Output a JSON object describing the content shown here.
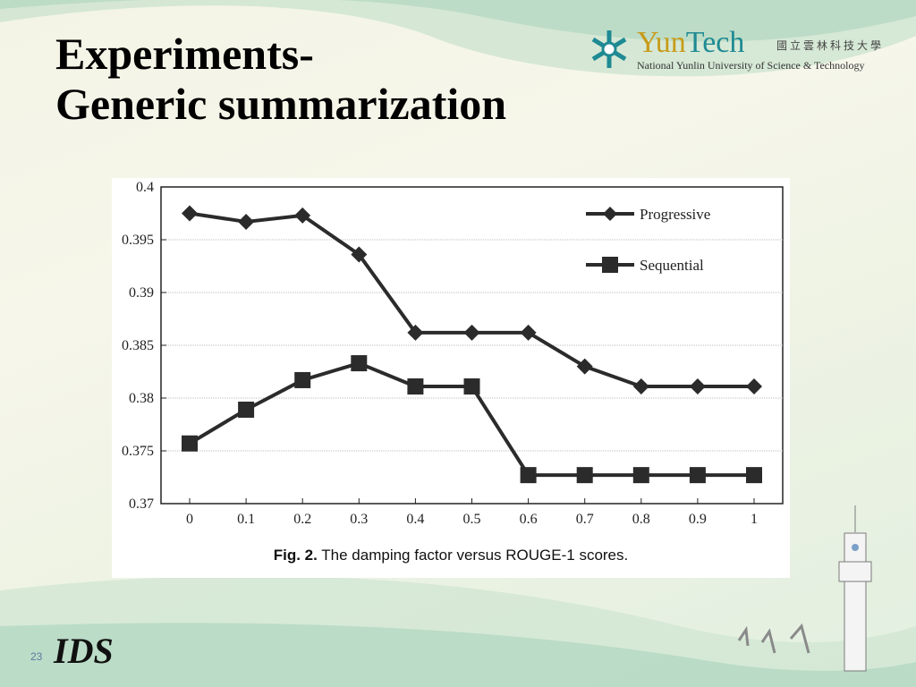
{
  "slide": {
    "title_line1": "Experiments-",
    "title_line2": "Generic summarization",
    "page_number": "23"
  },
  "logo": {
    "brand_yun": "Yun",
    "brand_tech": "Tech",
    "chinese_name": "國立雲林科技大學",
    "english_name": "National Yunlin University of Science & Technology",
    "footer_logo_text": "IDS"
  },
  "figure": {
    "caption_prefix": "Fig. 2.",
    "caption_text": "The damping factor versus ROUGE-1 scores."
  },
  "colors": {
    "series": "#2b2b2b",
    "grid": "#bdbdbd",
    "accent_gold": "#c79b18",
    "accent_teal": "#1f8a93"
  },
  "chart_data": {
    "type": "line",
    "x": [
      0,
      0.1,
      0.2,
      0.3,
      0.4,
      0.5,
      0.6,
      0.7,
      0.8,
      0.9,
      1
    ],
    "x_tick_labels": [
      "0",
      "0.1",
      "0.2",
      "0.3",
      "0.4",
      "0.5",
      "0.6",
      "0.7",
      "0.8",
      "0.9",
      "1"
    ],
    "y_tick_values": [
      0.4,
      0.395,
      0.39,
      0.385,
      0.38,
      0.375,
      0.37
    ],
    "y_tick_labels": [
      "0.4",
      "0.395",
      "0.39",
      "0.385",
      "0.38",
      "0.375",
      "0.37"
    ],
    "ylim": [
      0.37,
      0.4
    ],
    "series": [
      {
        "name": "Progressive",
        "marker": "diamond",
        "values": [
          0.3975,
          0.3967,
          0.3973,
          0.3936,
          0.3862,
          0.3862,
          0.3862,
          0.383,
          0.3811,
          0.3811,
          0.3811
        ]
      },
      {
        "name": "Sequential",
        "marker": "square",
        "values": [
          0.3757,
          0.3789,
          0.3817,
          0.3833,
          0.3811,
          0.3811,
          0.3727,
          0.3727,
          0.3727,
          0.3727,
          0.3727
        ]
      }
    ],
    "grid": true,
    "legend_position": "top-right"
  }
}
